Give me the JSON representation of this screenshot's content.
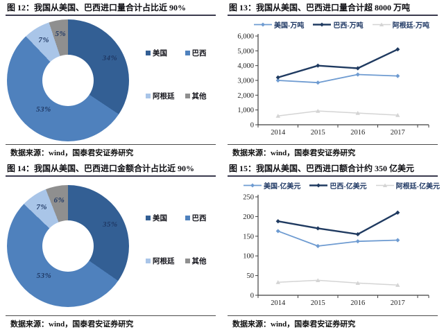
{
  "chart_data": [
    {
      "id": "fig12",
      "type": "pie",
      "title": "图 12：我国从美国、巴西进口量合计占比近 90%",
      "labels": [
        "美国",
        "巴西",
        "阿根廷",
        "其他"
      ],
      "values": [
        34,
        53,
        7,
        5
      ],
      "value_labels": [
        "34%",
        "53%",
        "7%",
        "5%"
      ],
      "colors": [
        "#335f94",
        "#4f81bd",
        "#a9c5e8",
        "#8f8f8f"
      ],
      "donut": true,
      "legend_position": "right",
      "source": "数据来源：wind，国泰君安证券研究"
    },
    {
      "id": "fig13",
      "type": "line",
      "title": "图 13：我国从美国、巴西进口量合计超 8000 万吨",
      "x": [
        "2014",
        "2015",
        "2016",
        "2017"
      ],
      "series": [
        {
          "name": "美国-万吨",
          "color": "#6e9bd1",
          "marker": "diamond",
          "stroke_width": 1.8,
          "values": [
            3000,
            2850,
            3400,
            3300
          ]
        },
        {
          "name": "巴西-万吨",
          "color": "#1f3a60",
          "marker": "diamond",
          "stroke_width": 2.4,
          "values": [
            3200,
            4000,
            3820,
            5100
          ]
        },
        {
          "name": "阿根廷-万吨",
          "color": "#d4d4d4",
          "marker": "triangle",
          "stroke_width": 1.5,
          "values": [
            600,
            930,
            790,
            650
          ]
        }
      ],
      "ylim": [
        0,
        6000
      ],
      "yticks": [
        0,
        1000,
        2000,
        3000,
        4000,
        5000,
        6000
      ],
      "ytick_labels": [
        "0",
        "1,000",
        "2,000",
        "3,000",
        "4,000",
        "5,000",
        "6,000"
      ],
      "grid": false,
      "legend_position": "top",
      "source": "数据来源：wind，国泰君安证券研究"
    },
    {
      "id": "fig14",
      "type": "pie",
      "title": "图 14：我国从美国、巴西进口金额合计占比近 90%",
      "labels": [
        "美国",
        "巴西",
        "阿根廷",
        "其他"
      ],
      "values": [
        35,
        53,
        7,
        6
      ],
      "value_labels": [
        "35%",
        "53%",
        "7%",
        "6%"
      ],
      "colors": [
        "#335f94",
        "#4f81bd",
        "#a9c5e8",
        "#8f8f8f"
      ],
      "donut": true,
      "legend_position": "right",
      "source": "数据来源：wind，国泰君安证券研究"
    },
    {
      "id": "fig15",
      "type": "line",
      "title": "图 15：我国从美国、巴西进口额合计约 350 亿美元",
      "x": [
        "2014",
        "2015",
        "2016",
        "2017"
      ],
      "series": [
        {
          "name": "美国-亿美元",
          "color": "#6e9bd1",
          "marker": "diamond",
          "stroke_width": 1.8,
          "values": [
            163,
            125,
            137,
            140
          ]
        },
        {
          "name": "巴西-亿美元",
          "color": "#1f3a60",
          "marker": "diamond",
          "stroke_width": 2.4,
          "values": [
            188,
            170,
            155,
            210
          ]
        },
        {
          "name": "阿根廷-亿美元",
          "color": "#d4d4d4",
          "marker": "triangle",
          "stroke_width": 1.5,
          "values": [
            33,
            38,
            31,
            26
          ]
        }
      ],
      "ylim": [
        0,
        250
      ],
      "yticks": [
        0,
        50,
        100,
        150,
        200,
        250
      ],
      "ytick_labels": [
        "0",
        "50",
        "100",
        "150",
        "200",
        "250"
      ],
      "grid": false,
      "legend_position": "top",
      "source": "数据来源：wind，国泰君安证券研究"
    }
  ]
}
